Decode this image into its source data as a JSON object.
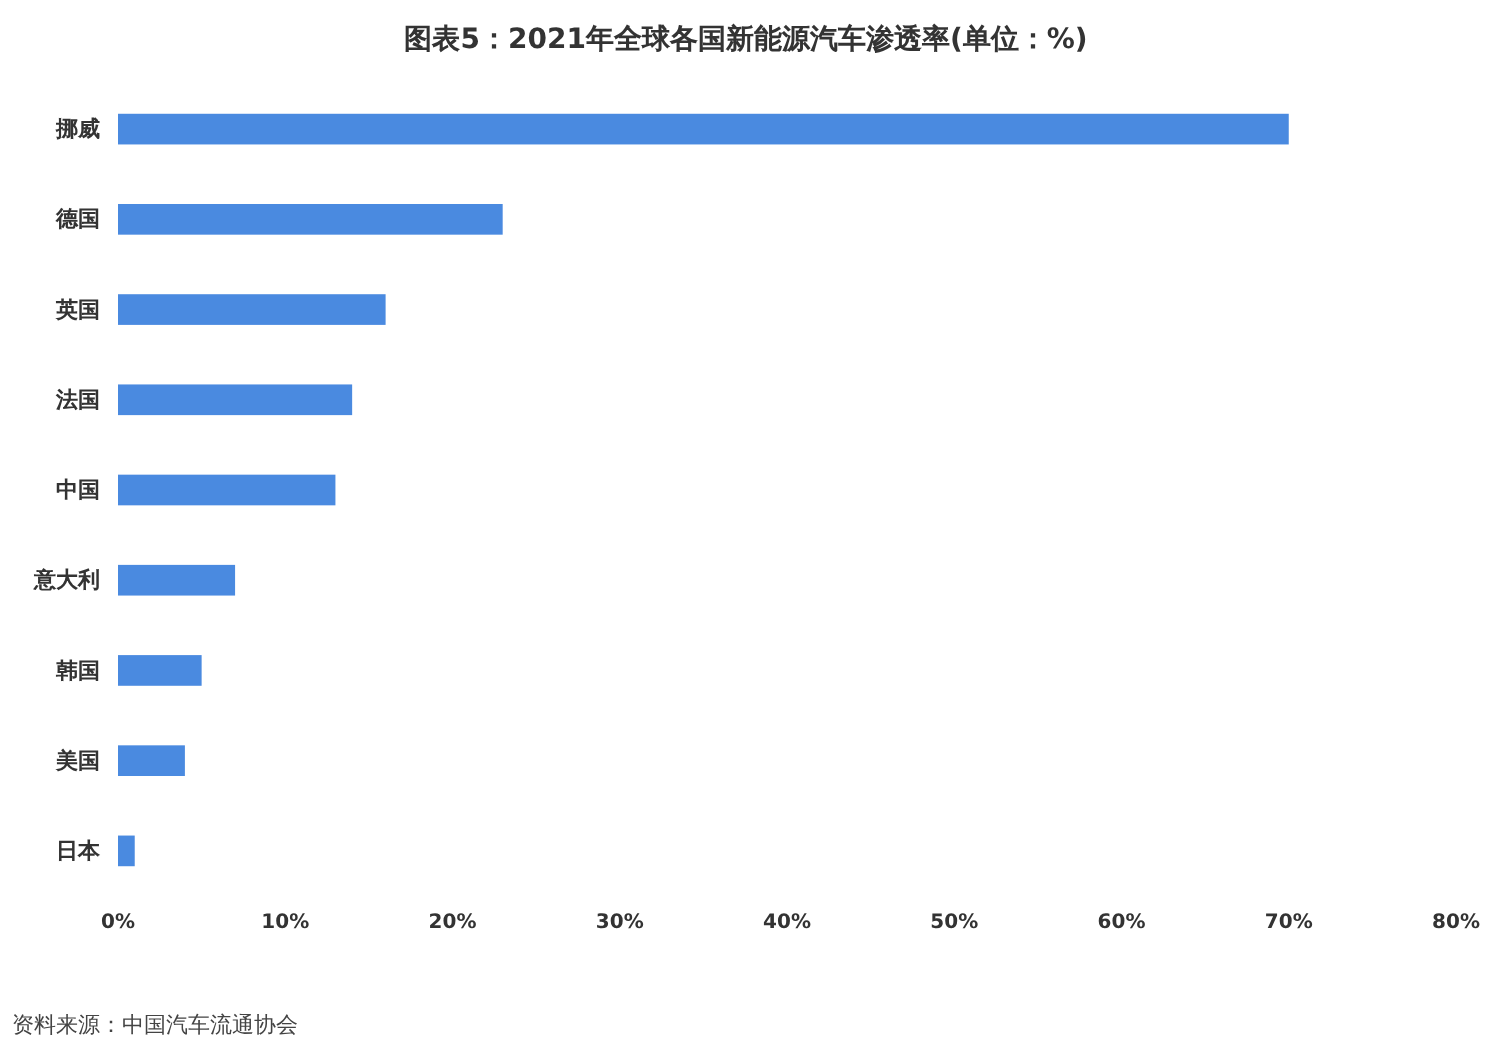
{
  "chart_data": {
    "type": "bar",
    "orientation": "horizontal",
    "title": "图表5：2021年全球各国新能源汽车渗透率(单位：%)",
    "categories": [
      "挪威",
      "德国",
      "英国",
      "法国",
      "中国",
      "意大利",
      "韩国",
      "美国",
      "日本"
    ],
    "values": [
      70,
      23,
      16,
      14,
      13,
      7,
      5,
      4,
      1
    ],
    "color": "#4a8ae0",
    "xlim": [
      0,
      80
    ],
    "xticks": [
      {
        "value": 0,
        "label": "0%"
      },
      {
        "value": 10,
        "label": "10%"
      },
      {
        "value": 20,
        "label": "20%"
      },
      {
        "value": 30,
        "label": "30%"
      },
      {
        "value": 40,
        "label": "40%"
      },
      {
        "value": 50,
        "label": "50%"
      },
      {
        "value": 60,
        "label": "60%"
      },
      {
        "value": 70,
        "label": "70%"
      },
      {
        "value": 80,
        "label": "80%"
      }
    ],
    "grid": false,
    "annotations": [
      "资料来源：中国汽车流通协会"
    ]
  }
}
